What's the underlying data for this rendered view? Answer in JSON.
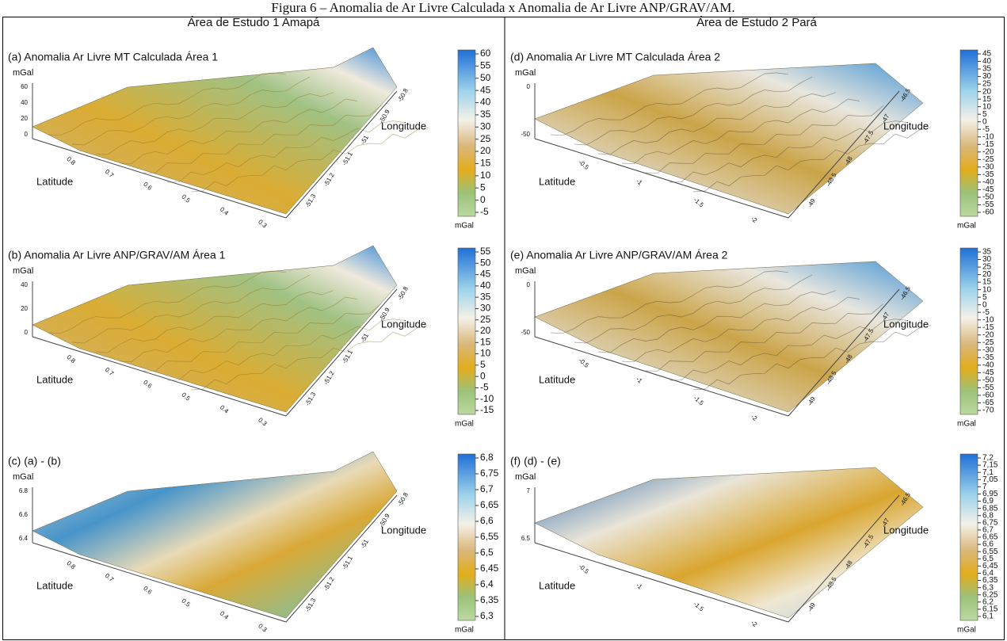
{
  "caption": "Figura 6 – Anomalia de Ar Livre Calculada x Anomalia de Ar Livre ANP/GRAV/AM.",
  "areas": [
    "Área de Estudo 1 Amapá",
    "Área de Estudo 2 Pará"
  ],
  "panels": [
    {
      "title": "(a) Anomalia Ar Livre MT Calculada Área 1",
      "z_label": "mGal",
      "colorbar_unit": "mGal",
      "colorbar_ticks": [
        "60",
        "55",
        "50",
        "45",
        "40",
        "35",
        "30",
        "25",
        "20",
        "15",
        "10",
        "5",
        "0",
        "-5"
      ],
      "z_ticks": [
        "60",
        "40",
        "20",
        "0"
      ],
      "lat_label": "Latitude",
      "lat_ticks": [
        "0.8",
        "0.7",
        "0.6",
        "0.5",
        "0.4",
        "0.3"
      ],
      "lon_label": "Longitude",
      "lon_ticks": [
        "-51.3",
        "-51.2",
        "-51.1",
        "-51",
        "-50.9",
        "-50.8"
      ]
    },
    {
      "title": "(b) Anomalia Ar Livre ANP/GRAV/AM Área 1",
      "z_label": "mGal",
      "colorbar_unit": "mGal",
      "colorbar_ticks": [
        "55",
        "50",
        "45",
        "40",
        "35",
        "30",
        "25",
        "20",
        "15",
        "10",
        "5",
        "0",
        "-5",
        "-10",
        "-15"
      ],
      "z_ticks": [
        "40",
        "20",
        "0"
      ],
      "lat_label": "Latitude",
      "lat_ticks": [
        "0.8",
        "0.7",
        "0.6",
        "0.5",
        "0.4",
        "0.3"
      ],
      "lon_label": "Longitude",
      "lon_ticks": [
        "-51.3",
        "-51.2",
        "-51.1",
        "-51",
        "-50.9",
        "-50.8"
      ]
    },
    {
      "title": "(c) (a) - (b)",
      "z_label": "mGal",
      "colorbar_unit": "mGal",
      "colorbar_ticks": [
        "6,8",
        "6,75",
        "6,7",
        "6,65",
        "6,6",
        "6,55",
        "6,5",
        "6,45",
        "6,4",
        "6,35",
        "6,3"
      ],
      "z_ticks": [
        "6.8",
        "6.6",
        "6.4"
      ],
      "lat_label": "Latitude",
      "lat_ticks": [
        "0.8",
        "0.7",
        "0.6",
        "0.5",
        "0.4",
        "0.3"
      ],
      "lon_label": "Longitude",
      "lon_ticks": [
        "-51.3",
        "-51.2",
        "-51.1",
        "-51",
        "-50.9",
        "-50.8"
      ]
    },
    {
      "title": "(d) Anomalia Ar Livre MT Calculada Área 2",
      "z_label": "mGal",
      "colorbar_unit": "mGal",
      "colorbar_ticks": [
        "45",
        "40",
        "35",
        "30",
        "25",
        "20",
        "15",
        "10",
        "5",
        "0",
        "-5",
        "-10",
        "-15",
        "-20",
        "-25",
        "-30",
        "-35",
        "-40",
        "-45",
        "-50",
        "-55",
        "-60"
      ],
      "z_ticks": [
        "0",
        "-50"
      ],
      "lat_label": "Latitude",
      "lat_ticks": [
        "-0.5",
        "-1",
        "-1.5",
        "-2"
      ],
      "lon_label": "Longitude",
      "lon_ticks": [
        "-49",
        "-48.5",
        "-48",
        "-47.5",
        "-47",
        "-46.5"
      ]
    },
    {
      "title": "(e) Anomalia Ar Livre ANP/GRAV/AM Área 2",
      "z_label": "mGal",
      "colorbar_unit": "mGal",
      "colorbar_ticks": [
        "35",
        "30",
        "25",
        "20",
        "15",
        "10",
        "5",
        "0",
        "-5",
        "-10",
        "-15",
        "-20",
        "-25",
        "-30",
        "-35",
        "-40",
        "-45",
        "-50",
        "-55",
        "-60",
        "-65",
        "-70"
      ],
      "z_ticks": [
        "0",
        "-50"
      ],
      "lat_label": "Latitude",
      "lat_ticks": [
        "-0.5",
        "-1",
        "-1.5",
        "-2"
      ],
      "lon_label": "Longitude",
      "lon_ticks": [
        "-49",
        "-48.5",
        "-48",
        "-47.5",
        "-47",
        "-46.5"
      ]
    },
    {
      "title": "(f) (d) - (e)",
      "z_label": "mGal",
      "colorbar_unit": "mGal",
      "colorbar_ticks": [
        "7,2",
        "7,15",
        "7,1",
        "7,05",
        "7",
        "6,95",
        "6,9",
        "6,85",
        "6,8",
        "6,75",
        "6,7",
        "6,65",
        "6,6",
        "6,55",
        "6,5",
        "6,45",
        "6,4",
        "6,35",
        "6,3",
        "6,25",
        "6,2",
        "6,15",
        "6,1"
      ],
      "z_ticks": [
        "7",
        "6.5"
      ],
      "lat_label": "Latitude",
      "lat_ticks": [
        "-0.5",
        "-1",
        "-1.5",
        "-2"
      ],
      "lon_label": "Longitude",
      "lon_ticks": [
        "-49",
        "-48.5",
        "-48",
        "-47.5",
        "-47",
        "-46.5"
      ]
    }
  ]
}
